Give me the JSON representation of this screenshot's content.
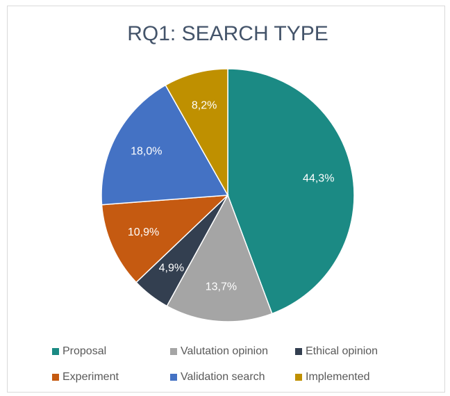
{
  "chart_data": {
    "type": "pie",
    "title": "RQ1: SEARCH TYPE",
    "categories": [
      "Proposal",
      "Valutation opinion",
      "Ethical opinion",
      "Experiment",
      "Validation search",
      "Implemented"
    ],
    "values": [
      44.3,
      13.7,
      4.9,
      10.9,
      18.0,
      8.2
    ],
    "value_labels": [
      "44,3%",
      "13,7%",
      "4,9%",
      "10,9%",
      "18,0%",
      "8,2%"
    ],
    "colors": [
      "#1b8a84",
      "#a5a5a5",
      "#333f50",
      "#c55a11",
      "#4472c4",
      "#bf9000"
    ],
    "legend": "bottom"
  }
}
